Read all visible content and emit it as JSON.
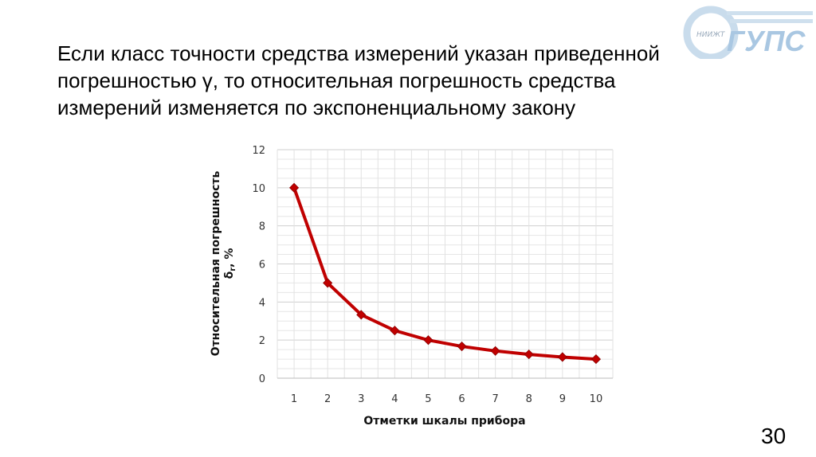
{
  "slide": {
    "title_line1": "Если класс точности средства измерений указан приведенной",
    "title_line2": "погрешностью γ, то относительная погрешность средства",
    "title_line3": "измерений изменяется по экспоненциальному закону",
    "page_number": "30"
  },
  "logo": {
    "small_text": "НИИЖТ",
    "main_text": "СГУПС",
    "color": "#4a90c8"
  },
  "chart_data": {
    "type": "line",
    "x": [
      1,
      2,
      3,
      4,
      5,
      6,
      7,
      8,
      9,
      10
    ],
    "categories": [
      "1",
      "2",
      "3",
      "4",
      "5",
      "6",
      "7",
      "8",
      "9",
      "10"
    ],
    "values": [
      10,
      5,
      3.33,
      2.5,
      2,
      1.67,
      1.43,
      1.25,
      1.11,
      1
    ],
    "xlabel": "Отметки шкалы прибора",
    "ylabel_line1": "Относительная погрешность",
    "ylabel_line2": "δ",
    "ylabel_sub": "r",
    "ylabel_unit": ", %",
    "ylim": [
      0,
      12
    ],
    "yticks": [
      "0",
      "2",
      "4",
      "6",
      "8",
      "10",
      "12"
    ],
    "grid": true,
    "marker": "diamond",
    "line_color": "#c00000"
  }
}
